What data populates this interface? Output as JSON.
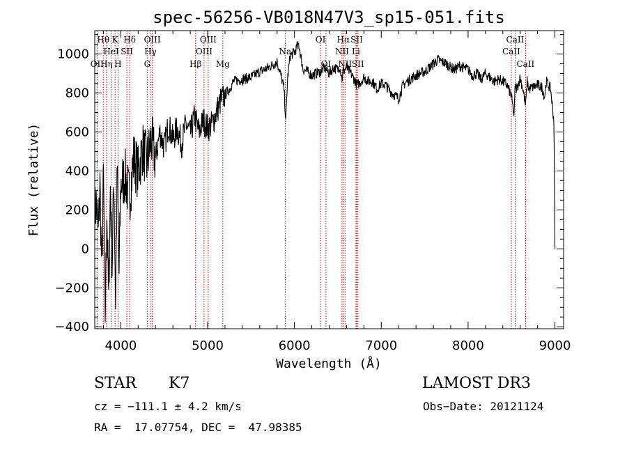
{
  "chart_data": {
    "type": "line",
    "title": "spec-56256-VB018N47V3_sp15-051.fits",
    "xlabel": "Wavelength (Å)",
    "ylabel": "Flux (relative)",
    "xlim": [
      3700,
      9100
    ],
    "ylim": [
      -410,
      1120
    ],
    "xticks": [
      4000,
      5000,
      6000,
      7000,
      8000,
      9000
    ],
    "yticks": [
      -400,
      -200,
      0,
      200,
      400,
      600,
      800,
      1000
    ],
    "xtick_labels": [
      "4000",
      "5000",
      "6000",
      "7000",
      "8000",
      "9000"
    ],
    "ytick_labels": [
      "−400",
      "−200",
      "0",
      "200",
      "400",
      "600",
      "800",
      "1000"
    ],
    "series": [
      {
        "name": "spectrum",
        "x": [
          3700,
          3720,
          3740,
          3760,
          3780,
          3800,
          3820,
          3840,
          3860,
          3880,
          3900,
          3920,
          3940,
          3960,
          3980,
          4000,
          4050,
          4100,
          4150,
          4200,
          4250,
          4300,
          4350,
          4400,
          4450,
          4500,
          4550,
          4600,
          4650,
          4700,
          4750,
          4800,
          4850,
          4900,
          4950,
          5000,
          5050,
          5100,
          5150,
          5200,
          5250,
          5300,
          5400,
          5500,
          5600,
          5700,
          5800,
          5850,
          5880,
          5890,
          5900,
          5920,
          5950,
          6000,
          6050,
          6100,
          6150,
          6200,
          6250,
          6300,
          6350,
          6400,
          6450,
          6500,
          6520,
          6550,
          6560,
          6580,
          6600,
          6650,
          6700,
          6720,
          6750,
          6800,
          6850,
          6900,
          6950,
          7000,
          7050,
          7100,
          7150,
          7200,
          7250,
          7300,
          7400,
          7500,
          7600,
          7650,
          7700,
          7750,
          7800,
          7850,
          7900,
          8000,
          8050,
          8100,
          8150,
          8200,
          8250,
          8300,
          8350,
          8400,
          8450,
          8500,
          8530,
          8542,
          8560,
          8600,
          8640,
          8662,
          8680,
          8700,
          8750,
          8800,
          8850,
          8880,
          8900,
          8950,
          8990,
          9000
        ],
        "values": [
          180,
          240,
          60,
          330,
          -120,
          380,
          -340,
          210,
          -280,
          320,
          -100,
          380,
          -260,
          430,
          -130,
          330,
          370,
          260,
          470,
          390,
          520,
          440,
          560,
          460,
          600,
          520,
          640,
          560,
          620,
          540,
          640,
          590,
          680,
          600,
          660,
          620,
          640,
          700,
          760,
          790,
          820,
          860,
          870,
          880,
          910,
          930,
          960,
          880,
          820,
          740,
          650,
          870,
          990,
          1010,
          1050,
          920,
          910,
          890,
          900,
          910,
          930,
          900,
          930,
          920,
          940,
          870,
          910,
          920,
          930,
          900,
          860,
          840,
          850,
          880,
          860,
          860,
          820,
          850,
          840,
          810,
          790,
          770,
          840,
          860,
          890,
          910,
          950,
          970,
          960,
          950,
          930,
          920,
          940,
          920,
          890,
          900,
          870,
          900,
          880,
          860,
          870,
          860,
          840,
          780,
          680,
          840,
          820,
          880,
          800,
          730,
          860,
          820,
          830,
          840,
          830,
          780,
          860,
          820,
          650,
          0
        ]
      }
    ],
    "lines": [
      {
        "label": "Hθ",
        "wavelength": 3798,
        "row": 1
      },
      {
        "label": "OII",
        "wavelength": 3727,
        "row": 3
      },
      {
        "label": "Hη",
        "wavelength": 3835,
        "row": 3
      },
      {
        "label": "HeI",
        "wavelength": 3889,
        "row": 2
      },
      {
        "label": "K",
        "wavelength": 3934,
        "row": 1
      },
      {
        "label": "H",
        "wavelength": 3968,
        "row": 3
      },
      {
        "label": "SII",
        "wavelength": 4070,
        "row": 2
      },
      {
        "label": "Hδ",
        "wavelength": 4102,
        "row": 1
      },
      {
        "label": "G",
        "wavelength": 4305,
        "row": 3
      },
      {
        "label": "Hγ",
        "wavelength": 4341,
        "row": 2
      },
      {
        "label": "OIII",
        "wavelength": 4363,
        "row": 1
      },
      {
        "label": "Hβ",
        "wavelength": 4861,
        "row": 3
      },
      {
        "label": "OIII",
        "wavelength": 4959,
        "row": 2
      },
      {
        "label": "OIII",
        "wavelength": 5007,
        "row": 1
      },
      {
        "label": "Mg",
        "wavelength": 5175,
        "row": 3
      },
      {
        "label": "Na",
        "wavelength": 5893,
        "row": 2
      },
      {
        "label": "OI",
        "wavelength": 6300,
        "row": 1
      },
      {
        "label": "OI",
        "wavelength": 6363,
        "row": 3
      },
      {
        "label": "NII",
        "wavelength": 6548,
        "row": 2
      },
      {
        "label": "Hα",
        "wavelength": 6563,
        "row": 1
      },
      {
        "label": "NII",
        "wavelength": 6583,
        "row": 3
      },
      {
        "label": "Li",
        "wavelength": 6708,
        "row": 2
      },
      {
        "label": "SII",
        "wavelength": 6717,
        "row": 1
      },
      {
        "label": "SII",
        "wavelength": 6731,
        "row": 3
      },
      {
        "label": "CaII",
        "wavelength": 8498,
        "row": 2
      },
      {
        "label": "CaII",
        "wavelength": 8542,
        "row": 1
      },
      {
        "label": "CaII",
        "wavelength": 8662,
        "row": 3
      }
    ]
  },
  "info": {
    "object_class": "STAR",
    "subclass": "K7",
    "survey": "LAMOST DR3",
    "cz": "cz = −111.1 ± 4.2 km/s",
    "obs_date": "Obs−Date: 20121124",
    "coords": "RA =  17.07754, DEC =  47.98385"
  },
  "colors": {
    "line_marker": "#cc0000",
    "spectrum": "#000000"
  }
}
